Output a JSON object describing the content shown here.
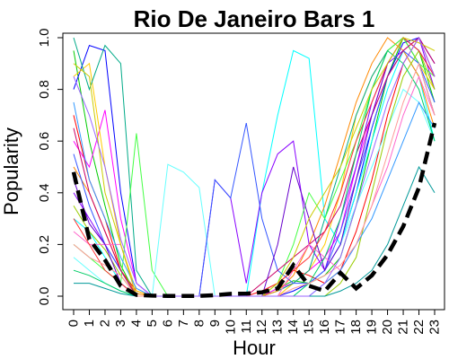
{
  "chart_data": {
    "type": "line",
    "title": "Rio De Janeiro Bars 1",
    "xlabel": "Hour",
    "ylabel": "Popularity",
    "x": [
      0,
      1,
      2,
      3,
      4,
      5,
      6,
      7,
      8,
      9,
      10,
      11,
      12,
      13,
      14,
      15,
      16,
      17,
      18,
      19,
      20,
      21,
      22,
      23
    ],
    "x_tick_labels": [
      "0",
      "1",
      "2",
      "3",
      "4",
      "5",
      "6",
      "7",
      "8",
      "9",
      "10",
      "11",
      "12",
      "13",
      "14",
      "15",
      "16",
      "17",
      "18",
      "19",
      "20",
      "21",
      "22",
      "23"
    ],
    "y_ticks": [
      0.0,
      0.2,
      0.4,
      0.6,
      0.8,
      1.0
    ],
    "y_tick_labels": [
      "0.0",
      "0.2",
      "0.4",
      "0.6",
      "0.8",
      "1.0"
    ],
    "xlim": [
      0,
      23
    ],
    "ylim": [
      0,
      1
    ],
    "grid": false,
    "legend": "none",
    "series": [
      {
        "color": "#000000",
        "style": "dashed-thick",
        "values": [
          0.48,
          0.22,
          0.14,
          0.04,
          0.005,
          0.002,
          0.001,
          0.001,
          0.001,
          0.004,
          0.009,
          0.01,
          0.015,
          0.03,
          0.12,
          0.04,
          0.02,
          0.09,
          0.03,
          0.08,
          0.16,
          0.27,
          0.42,
          0.67
        ]
      },
      {
        "color": "#ff0000",
        "values": [
          0.7,
          0.45,
          0.3,
          0.1,
          0.02,
          0.0,
          0.0,
          0.0,
          0.0,
          0.0,
          0.0,
          0.0,
          0.02,
          0.05,
          0.1,
          0.08,
          0.05,
          0.1,
          0.25,
          0.45,
          0.7,
          0.9,
          1.0,
          0.85
        ]
      },
      {
        "color": "#00cc00",
        "values": [
          0.95,
          0.6,
          0.35,
          0.12,
          0.0,
          0.0,
          0.0,
          0.0,
          0.0,
          0.0,
          0.0,
          0.0,
          0.0,
          0.03,
          0.06,
          0.05,
          0.08,
          0.15,
          0.35,
          0.6,
          0.85,
          1.0,
          0.95,
          0.75
        ]
      },
      {
        "color": "#0000ff",
        "values": [
          0.8,
          0.97,
          0.95,
          0.4,
          0.05,
          0.0,
          0.0,
          0.0,
          0.0,
          0.0,
          0.0,
          0.0,
          0.0,
          0.0,
          0.02,
          0.05,
          0.1,
          0.2,
          0.4,
          0.65,
          0.85,
          0.98,
          1.0,
          0.9
        ]
      },
      {
        "color": "#00ffff",
        "values": [
          0.3,
          0.25,
          0.15,
          0.05,
          0.0,
          0.0,
          0.0,
          0.0,
          0.0,
          0.0,
          0.0,
          0.0,
          0.4,
          0.7,
          0.95,
          0.92,
          0.3,
          0.2,
          0.4,
          0.6,
          0.8,
          0.95,
          0.85,
          0.6
        ]
      },
      {
        "color": "#ff00ff",
        "values": [
          0.6,
          0.5,
          0.72,
          0.3,
          0.05,
          0.0,
          0.0,
          0.0,
          0.0,
          0.0,
          0.0,
          0.0,
          0.0,
          0.03,
          0.05,
          0.1,
          0.15,
          0.25,
          0.5,
          0.7,
          0.9,
          1.0,
          0.9,
          0.7
        ]
      },
      {
        "color": "#ffcc00",
        "values": [
          0.85,
          0.9,
          0.5,
          0.2,
          0.02,
          0.0,
          0.0,
          0.0,
          0.0,
          0.0,
          0.0,
          0.0,
          0.0,
          0.0,
          0.05,
          0.1,
          0.2,
          0.4,
          0.7,
          0.85,
          0.95,
          1.0,
          0.9,
          0.8
        ]
      },
      {
        "color": "#8800ff",
        "values": [
          0.4,
          0.3,
          0.2,
          0.1,
          0.0,
          0.0,
          0.0,
          0.0,
          0.0,
          0.45,
          0.38,
          0.05,
          0.4,
          0.55,
          0.6,
          0.2,
          0.1,
          0.3,
          0.5,
          0.75,
          0.9,
          0.95,
          1.0,
          0.8
        ]
      },
      {
        "color": "#00aa88",
        "values": [
          1.0,
          0.8,
          0.97,
          0.9,
          0.1,
          0.0,
          0.0,
          0.0,
          0.0,
          0.0,
          0.0,
          0.0,
          0.0,
          0.02,
          0.05,
          0.1,
          0.3,
          0.5,
          0.7,
          0.85,
          0.95,
          1.0,
          0.9,
          0.7
        ]
      },
      {
        "color": "#ff8800",
        "values": [
          0.5,
          0.4,
          0.25,
          0.1,
          0.01,
          0.0,
          0.0,
          0.0,
          0.0,
          0.0,
          0.0,
          0.0,
          0.0,
          0.02,
          0.08,
          0.2,
          0.35,
          0.55,
          0.75,
          0.9,
          1.0,
          0.95,
          0.85,
          0.65
        ]
      },
      {
        "color": "#44ff44",
        "values": [
          0.2,
          0.15,
          0.1,
          0.05,
          0.63,
          0.1,
          0.0,
          0.0,
          0.0,
          0.0,
          0.0,
          0.0,
          0.0,
          0.05,
          0.2,
          0.4,
          0.3,
          0.45,
          0.6,
          0.8,
          0.95,
          1.0,
          0.9,
          0.85
        ]
      },
      {
        "color": "#66ffff",
        "values": [
          0.15,
          0.1,
          0.05,
          0.02,
          0.0,
          0.0,
          0.51,
          0.48,
          0.42,
          0.0,
          0.0,
          0.0,
          0.0,
          0.0,
          0.0,
          0.05,
          0.1,
          0.2,
          0.35,
          0.5,
          0.65,
          0.8,
          0.75,
          0.6
        ]
      },
      {
        "color": "#3355ff",
        "values": [
          0.55,
          0.35,
          0.2,
          0.1,
          0.0,
          0.0,
          0.0,
          0.0,
          0.0,
          0.45,
          0.38,
          0.67,
          0.3,
          0.1,
          0.05,
          0.05,
          0.1,
          0.25,
          0.45,
          0.65,
          0.85,
          0.95,
          0.9,
          0.75
        ]
      },
      {
        "color": "#cc0066",
        "values": [
          0.65,
          0.4,
          0.25,
          0.1,
          0.0,
          0.0,
          0.0,
          0.0,
          0.0,
          0.0,
          0.0,
          0.0,
          0.05,
          0.1,
          0.15,
          0.2,
          0.25,
          0.35,
          0.55,
          0.7,
          0.85,
          0.95,
          1.0,
          0.9
        ]
      },
      {
        "color": "#99cc00",
        "values": [
          0.35,
          0.25,
          0.18,
          0.08,
          0.0,
          0.0,
          0.0,
          0.0,
          0.0,
          0.0,
          0.0,
          0.0,
          0.0,
          0.0,
          0.0,
          0.0,
          0.0,
          0.05,
          0.15,
          0.4,
          0.65,
          0.85,
          0.95,
          0.8
        ]
      },
      {
        "color": "#ff66cc",
        "values": [
          0.25,
          0.2,
          0.2,
          0.2,
          0.0,
          0.0,
          0.0,
          0.0,
          0.0,
          0.0,
          0.0,
          0.0,
          0.0,
          0.0,
          0.1,
          0.2,
          0.15,
          0.1,
          0.2,
          0.35,
          0.5,
          0.7,
          0.85,
          0.7
        ]
      },
      {
        "color": "#6600cc",
        "values": [
          0.45,
          0.28,
          0.2,
          0.05,
          0.0,
          0.0,
          0.0,
          0.0,
          0.0,
          0.0,
          0.0,
          0.0,
          0.0,
          0.2,
          0.5,
          0.3,
          0.1,
          0.2,
          0.45,
          0.7,
          0.9,
          1.0,
          0.95,
          0.85
        ]
      },
      {
        "color": "#00cc66",
        "values": [
          0.1,
          0.08,
          0.05,
          0.02,
          0.0,
          0.0,
          0.0,
          0.0,
          0.0,
          0.0,
          0.0,
          0.0,
          0.0,
          0.0,
          0.0,
          0.05,
          0.15,
          0.3,
          0.55,
          0.8,
          0.95,
          0.9,
          0.8,
          0.6
        ]
      },
      {
        "color": "#ff3333",
        "values": [
          0.3,
          0.2,
          0.1,
          0.05,
          0.0,
          0.0,
          0.0,
          0.0,
          0.0,
          0.0,
          0.0,
          0.0,
          0.02,
          0.05,
          0.1,
          0.15,
          0.25,
          0.4,
          0.6,
          0.75,
          0.9,
          1.0,
          0.95,
          0.85
        ]
      },
      {
        "color": "#3399ff",
        "values": [
          0.75,
          0.45,
          0.3,
          0.15,
          0.03,
          0.0,
          0.0,
          0.0,
          0.0,
          0.0,
          0.0,
          0.0,
          0.0,
          0.0,
          0.0,
          0.0,
          0.05,
          0.1,
          0.2,
          0.3,
          0.45,
          0.6,
          0.75,
          0.65
        ]
      },
      {
        "color": "#cccc00",
        "values": [
          0.9,
          0.85,
          0.4,
          0.2,
          0.0,
          0.0,
          0.0,
          0.0,
          0.0,
          0.0,
          0.0,
          0.0,
          0.0,
          0.05,
          0.15,
          0.3,
          0.4,
          0.5,
          0.65,
          0.8,
          0.9,
          1.0,
          0.98,
          0.95
        ]
      },
      {
        "color": "#009999",
        "values": [
          0.05,
          0.05,
          0.03,
          0.01,
          0.0,
          0.0,
          0.0,
          0.0,
          0.0,
          0.0,
          0.0,
          0.0,
          0.0,
          0.0,
          0.0,
          0.0,
          0.0,
          0.02,
          0.05,
          0.1,
          0.2,
          0.35,
          0.5,
          0.4
        ]
      },
      {
        "color": "#ff9999",
        "values": [
          0.2,
          0.15,
          0.12,
          0.08,
          0.0,
          0.0,
          0.0,
          0.0,
          0.0,
          0.0,
          0.0,
          0.0,
          0.0,
          0.0,
          0.03,
          0.05,
          0.08,
          0.12,
          0.2,
          0.35,
          0.55,
          0.75,
          0.9,
          0.7
        ]
      },
      {
        "color": "#9966ff",
        "values": [
          0.85,
          0.7,
          0.5,
          0.22,
          0.05,
          0.0,
          0.0,
          0.0,
          0.0,
          0.0,
          0.0,
          0.0,
          0.0,
          0.0,
          0.0,
          0.0,
          0.05,
          0.15,
          0.35,
          0.55,
          0.75,
          0.9,
          1.0,
          0.85
        ]
      }
    ]
  }
}
